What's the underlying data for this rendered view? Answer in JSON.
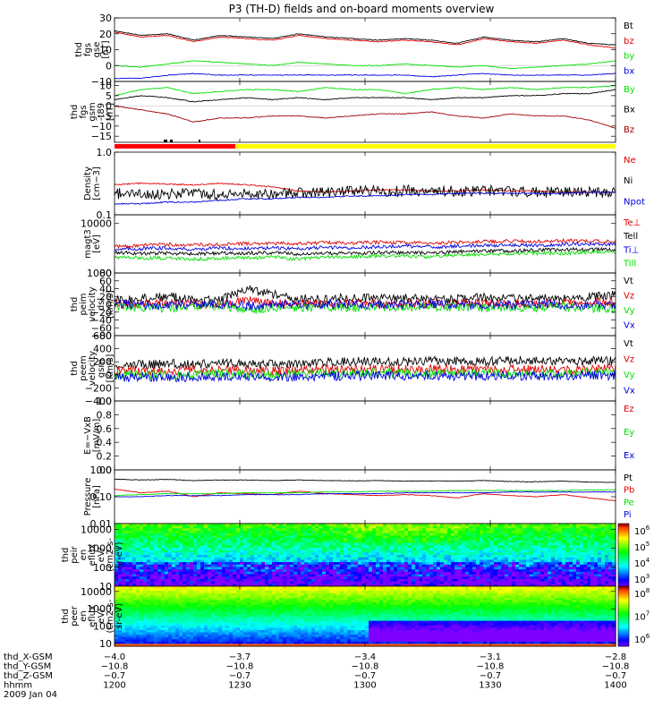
{
  "title": "P3 (TH-D) fields and on-board moments overview",
  "colors": {
    "black": "#000000",
    "red": "#e00000",
    "green": "#00e000",
    "blue": "#0000e0",
    "darkred": "#a00000",
    "flag_red": "#ff0000",
    "flag_yellow": "#ffff00"
  },
  "chart_data": [
    {
      "id": "p1",
      "type": "line",
      "ylabel": [
        "thd",
        "fgs",
        "gse",
        "[nT]"
      ],
      "ylim": [
        -10,
        30
      ],
      "yticks": [
        "30",
        "20",
        "10",
        "0",
        "−10"
      ],
      "ytick_values": [
        30,
        20,
        10,
        0,
        -10
      ],
      "series": [
        {
          "name": "Bt",
          "color": "black",
          "values": [
            22,
            19,
            20,
            16,
            19,
            18,
            17,
            20,
            18,
            17,
            16,
            17,
            16,
            14,
            18,
            16,
            15,
            17,
            14,
            13
          ]
        },
        {
          "name": "bz",
          "color": "red",
          "values": [
            21,
            18,
            19,
            15,
            18,
            17,
            16,
            19,
            17,
            16,
            15,
            16,
            15,
            13,
            17,
            15,
            14,
            16,
            13,
            11
          ]
        },
        {
          "name": "by",
          "color": "green",
          "values": [
            0,
            -1,
            1,
            3,
            2,
            1,
            0,
            2,
            1,
            0,
            0,
            1,
            0,
            -1,
            0,
            -2,
            -1,
            0,
            1,
            3
          ]
        },
        {
          "name": "bx",
          "color": "blue",
          "values": [
            -8,
            -8,
            -6,
            -5,
            -6,
            -6,
            -6,
            -6,
            -6,
            -6,
            -6,
            -6,
            -7,
            -6,
            -5,
            -6,
            -6,
            -6,
            -6,
            -5
          ]
        }
      ]
    },
    {
      "id": "p2",
      "type": "line",
      "ylabel": [
        "thd",
        "fgs",
        "gsm",
        "-t89",
        "[nT]"
      ],
      "ylim": [
        -18,
        12
      ],
      "yticks": [
        "10",
        "5",
        "0",
        "−5",
        "−10",
        "−15"
      ],
      "ytick_values": [
        10,
        5,
        0,
        -5,
        -10,
        -15
      ],
      "series": [
        {
          "name": "By",
          "color": "green",
          "values": [
            5,
            8,
            9,
            6,
            7,
            8,
            8,
            7,
            9,
            8,
            8,
            6,
            8,
            9,
            8,
            9,
            8,
            9,
            9,
            10
          ]
        },
        {
          "name": "Bx",
          "color": "black",
          "values": [
            3,
            5,
            4,
            2,
            3,
            4,
            3,
            4,
            3,
            4,
            4,
            4,
            3,
            4,
            4,
            5,
            5,
            6,
            6,
            8
          ]
        },
        {
          "name": "Bz",
          "color": "darkred",
          "values": [
            0,
            -2,
            -4,
            -8,
            -6,
            -6,
            -5,
            -5,
            -6,
            -5,
            -4,
            -4,
            -3,
            -5,
            -6,
            -4,
            -5,
            -5,
            -7,
            -11
          ]
        }
      ]
    },
    {
      "id": "p3",
      "type": "line",
      "ylabel": [
        "Density",
        "[cm−3]"
      ],
      "yscale": "log",
      "ylim": [
        0.1,
        1.0
      ],
      "yticks": [
        "1.0",
        "0.1"
      ],
      "ytick_values": [
        1.0,
        0.1
      ],
      "series": [
        {
          "name": "Ne",
          "color": "red",
          "values": [
            0.3,
            0.32,
            0.31,
            0.3,
            0.32,
            0.3,
            0.28,
            0.24,
            0.23,
            0.24,
            0.25,
            0.25,
            0.24,
            0.24,
            0.25,
            0.24,
            0.24,
            0.23,
            0.23,
            0.23
          ]
        },
        {
          "name": "Ni",
          "color": "black",
          "values": [
            0.22,
            0.21,
            0.22,
            0.22,
            0.21,
            0.22,
            0.22,
            0.22,
            0.23,
            0.24,
            0.24,
            0.24,
            0.25,
            0.24,
            0.24,
            0.24,
            0.23,
            0.23,
            0.23,
            0.23
          ]
        },
        {
          "name": "Npot",
          "color": "blue",
          "values": [
            0.15,
            0.15,
            0.16,
            0.16,
            0.17,
            0.18,
            0.18,
            0.19,
            0.19,
            0.2,
            0.2,
            0.21,
            0.21,
            0.22,
            0.22,
            0.22,
            0.22,
            0.22,
            0.23,
            0.23
          ]
        }
      ]
    },
    {
      "id": "p4",
      "type": "line",
      "ylabel": [
        "magt3",
        "[eV]"
      ],
      "yscale": "log",
      "ylim": [
        1000,
        15000
      ],
      "yticks": [
        "10000",
        "1000"
      ],
      "ytick_values": [
        10000,
        1000
      ],
      "series": [
        {
          "name": "Te⊥",
          "color": "red",
          "values": [
            3400,
            3600,
            3800,
            3700,
            3800,
            3900,
            4000,
            3900,
            4100,
            4000,
            4200,
            4100,
            4000,
            4200,
            4300,
            4400,
            4300,
            4500,
            4400,
            4400
          ]
        },
        {
          "name": "Tell",
          "color": "black",
          "values": [
            2600,
            2500,
            2500,
            2400,
            2500,
            2500,
            2600,
            2400,
            2500,
            2500,
            2600,
            2600,
            2500,
            2700,
            2800,
            2800,
            2900,
            3000,
            3000,
            3000
          ]
        },
        {
          "name": "Ti⊥",
          "color": "blue",
          "values": [
            3000,
            3100,
            3200,
            3000,
            3200,
            3100,
            3200,
            3100,
            3300,
            3200,
            3400,
            3500,
            3300,
            3500,
            3600,
            3700,
            3600,
            3800,
            3800,
            3700
          ]
        },
        {
          "name": "Till",
          "color": "green",
          "values": [
            2100,
            2000,
            2000,
            1900,
            2000,
            2000,
            2100,
            1900,
            2100,
            2100,
            2200,
            2200,
            2100,
            2300,
            2400,
            2400,
            2500,
            2500,
            2600,
            2600
          ]
        }
      ]
    },
    {
      "id": "p5",
      "type": "line",
      "ylabel": [
        "thd",
        "peim",
        "velocity",
        "dsl",
        "[km/s]"
      ],
      "ylim": [
        -80,
        80
      ],
      "yticks": [
        "80",
        "60",
        "40",
        "20",
        "0",
        "−20",
        "−40",
        "−60",
        "−80"
      ],
      "ytick_values": [
        80,
        60,
        40,
        20,
        0,
        -20,
        -40,
        -60,
        -80
      ],
      "series": [
        {
          "name": "Vt",
          "color": "black",
          "values": [
            10,
            15,
            20,
            12,
            10,
            40,
            25,
            15,
            12,
            18,
            14,
            16,
            12,
            14,
            18,
            15,
            16,
            14,
            20,
            25
          ]
        },
        {
          "name": "Vz",
          "color": "red",
          "values": [
            0,
            2,
            4,
            0,
            -2,
            10,
            4,
            2,
            0,
            3,
            2,
            2,
            0,
            2,
            4,
            2,
            3,
            2,
            4,
            6
          ]
        },
        {
          "name": "Vy",
          "color": "green",
          "values": [
            -5,
            -8,
            -10,
            -6,
            -4,
            -15,
            -10,
            -8,
            -6,
            -9,
            -7,
            -8,
            -6,
            -7,
            -9,
            -8,
            -8,
            -7,
            -10,
            -12
          ]
        },
        {
          "name": "Vx",
          "color": "blue",
          "values": [
            0,
            -2,
            -3,
            -1,
            0,
            -4,
            -2,
            -1,
            0,
            -1,
            -1,
            -1,
            0,
            -1,
            -2,
            -1,
            -1,
            -1,
            -2,
            -3
          ]
        }
      ]
    },
    {
      "id": "p6",
      "type": "line",
      "ylabel": [
        "thd",
        "peem",
        "velocity",
        "gsm",
        "[km/s]"
      ],
      "ylim": [
        -400,
        600
      ],
      "yticks": [
        "600",
        "400",
        "200",
        "0",
        "−200",
        "−400"
      ],
      "ytick_values": [
        600,
        400,
        200,
        0,
        -200,
        -400
      ],
      "series": [
        {
          "name": "Vt",
          "color": "black",
          "values": [
            150,
            160,
            170,
            160,
            180,
            170,
            160,
            180,
            190,
            200,
            210,
            200,
            220,
            210,
            200,
            220,
            210,
            200,
            210,
            220
          ]
        },
        {
          "name": "Vz",
          "color": "red",
          "values": [
            60,
            70,
            60,
            70,
            80,
            70,
            60,
            70,
            80,
            80,
            90,
            80,
            90,
            80,
            80,
            90,
            80,
            80,
            90,
            90
          ]
        },
        {
          "name": "Vy",
          "color": "green",
          "values": [
            0,
            10,
            0,
            10,
            20,
            10,
            0,
            10,
            20,
            20,
            30,
            20,
            30,
            20,
            20,
            30,
            20,
            20,
            30,
            30
          ]
        },
        {
          "name": "Vx",
          "color": "blue",
          "values": [
            -40,
            -30,
            -40,
            -30,
            -20,
            -30,
            -40,
            -30,
            -20,
            -20,
            -10,
            -20,
            -10,
            -20,
            -20,
            -10,
            -20,
            -20,
            -10,
            -10
          ]
        }
      ]
    },
    {
      "id": "p7",
      "type": "line",
      "ylabel": [
        "E=−VxB",
        "[mV/m]"
      ],
      "ylim": [
        0.0,
        1.0
      ],
      "yticks": [
        "1.0",
        "0.8",
        "0.6",
        "0.4",
        "0.2",
        "0.0"
      ],
      "ytick_values": [
        1.0,
        0.8,
        0.6,
        0.4,
        0.2,
        0.0
      ],
      "series": [
        {
          "name": "Ez",
          "color": "red",
          "values": []
        },
        {
          "name": "Ey",
          "color": "green",
          "values": []
        },
        {
          "name": "Ex",
          "color": "blue",
          "values": []
        }
      ]
    },
    {
      "id": "p8",
      "type": "line",
      "ylabel": [
        "Pressure",
        "[nPa]"
      ],
      "yscale": "log",
      "ylim": [
        0.01,
        1.0
      ],
      "yticks": [
        "1.00",
        "0.10",
        "0.01"
      ],
      "ytick_values": [
        1.0,
        0.1,
        0.01
      ],
      "series": [
        {
          "name": "Pt",
          "color": "black",
          "values": [
            0.45,
            0.42,
            0.44,
            0.4,
            0.42,
            0.42,
            0.4,
            0.42,
            0.4,
            0.39,
            0.4,
            0.38,
            0.39,
            0.38,
            0.4,
            0.37,
            0.36,
            0.38,
            0.35,
            0.34
          ]
        },
        {
          "name": "Pb",
          "color": "red",
          "values": [
            0.19,
            0.14,
            0.16,
            0.1,
            0.14,
            0.13,
            0.12,
            0.16,
            0.13,
            0.12,
            0.11,
            0.12,
            0.11,
            0.09,
            0.13,
            0.11,
            0.1,
            0.12,
            0.09,
            0.07
          ]
        },
        {
          "name": "Pe",
          "color": "green",
          "values": [
            0.11,
            0.12,
            0.13,
            0.13,
            0.13,
            0.14,
            0.14,
            0.14,
            0.15,
            0.15,
            0.16,
            0.16,
            0.16,
            0.17,
            0.17,
            0.17,
            0.17,
            0.17,
            0.18,
            0.18
          ]
        },
        {
          "name": "Pi",
          "color": "blue",
          "values": [
            0.1,
            0.1,
            0.11,
            0.11,
            0.11,
            0.12,
            0.12,
            0.12,
            0.13,
            0.13,
            0.13,
            0.14,
            0.14,
            0.14,
            0.14,
            0.15,
            0.15,
            0.15,
            0.15,
            0.15
          ]
        }
      ]
    },
    {
      "id": "p9",
      "type": "heatmap",
      "ylabel": [
        "thd",
        "peir",
        "en",
        "eflux",
        "eV/",
        "(cm2-s-",
        "sr-eV)"
      ],
      "yscale": "log",
      "ylim": [
        10,
        20000
      ],
      "yticks": [
        "10000",
        "1000",
        "100",
        "10"
      ],
      "ytick_values": [
        10000,
        1000,
        100,
        10
      ],
      "colorbar": {
        "min_exp": 3,
        "max_exp": 6,
        "labels": [
          "6",
          "5",
          "4",
          "3"
        ]
      }
    },
    {
      "id": "p10",
      "type": "heatmap",
      "ylabel": [
        "thd",
        "peer",
        "en",
        "eflux",
        "eV/",
        "(cm2-s-",
        "sr-eV)"
      ],
      "yscale": "log",
      "ylim": [
        7,
        20000
      ],
      "yticks": [
        "10000",
        "1000",
        "100",
        "10"
      ],
      "ytick_values": [
        10000,
        1000,
        100,
        10
      ],
      "colorbar": {
        "min_exp": 6,
        "max_exp": 8,
        "labels": [
          "8",
          "7",
          "6"
        ]
      }
    }
  ],
  "x_axis": {
    "ticks": [
      "1200",
      "1230",
      "1300",
      "1330",
      "1400"
    ],
    "rows": [
      {
        "label": "thd_X-GSM",
        "values": [
          "−4.0",
          "−3.7",
          "−3.4",
          "−3.1",
          "−2.8"
        ]
      },
      {
        "label": "thd_Y-GSM",
        "values": [
          "−10.8",
          "−10.8",
          "−10.8",
          "−10.8",
          "−10.8"
        ]
      },
      {
        "label": "thd_Z-GSM",
        "values": [
          "−0.7",
          "−0.7",
          "−0.7",
          "−0.7",
          "−0.7"
        ]
      },
      {
        "label": "hhmm",
        "values": [
          "1200",
          "1230",
          "1300",
          "1330",
          "1400"
        ]
      }
    ],
    "date": "2009 Jan 04"
  }
}
